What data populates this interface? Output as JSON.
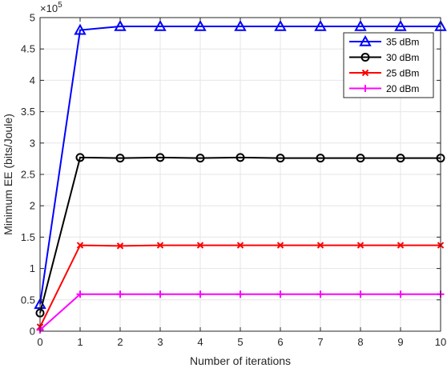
{
  "chart_data": {
    "type": "line",
    "xlabel": "Number of iterations",
    "ylabel": "Minimum EE (bits/Joule)",
    "y_exponent_base": "×10",
    "y_exponent": "5",
    "xlim": [
      0,
      10
    ],
    "ylim": [
      0,
      5
    ],
    "x_ticks": [
      0,
      1,
      2,
      3,
      4,
      5,
      6,
      7,
      8,
      9,
      10
    ],
    "y_ticks": [
      0,
      0.5,
      1,
      1.5,
      2,
      2.5,
      3,
      3.5,
      4,
      4.5,
      5
    ],
    "y_scale_multiplier": 100000,
    "grid": true,
    "legend_position": "top-right",
    "x": [
      0,
      1,
      2,
      3,
      4,
      5,
      6,
      7,
      8,
      9,
      10
    ],
    "series": [
      {
        "name": "35 dBm",
        "color": "#0000ff",
        "marker": "triangle",
        "values": [
          0.43,
          4.8,
          4.86,
          4.86,
          4.86,
          4.86,
          4.86,
          4.86,
          4.86,
          4.86,
          4.86
        ]
      },
      {
        "name": "30 dBm",
        "color": "#000000",
        "marker": "circle",
        "values": [
          0.29,
          2.77,
          2.76,
          2.77,
          2.76,
          2.77,
          2.76,
          2.76,
          2.76,
          2.76,
          2.76
        ]
      },
      {
        "name": "25 dBm",
        "color": "#ff0000",
        "marker": "x",
        "values": [
          0.07,
          1.37,
          1.36,
          1.37,
          1.37,
          1.37,
          1.37,
          1.37,
          1.37,
          1.37,
          1.37
        ]
      },
      {
        "name": "20 dBm",
        "color": "#ff00ff",
        "marker": "plus",
        "values": [
          0.02,
          0.59,
          0.59,
          0.59,
          0.59,
          0.59,
          0.59,
          0.59,
          0.59,
          0.59,
          0.59
        ]
      }
    ]
  }
}
